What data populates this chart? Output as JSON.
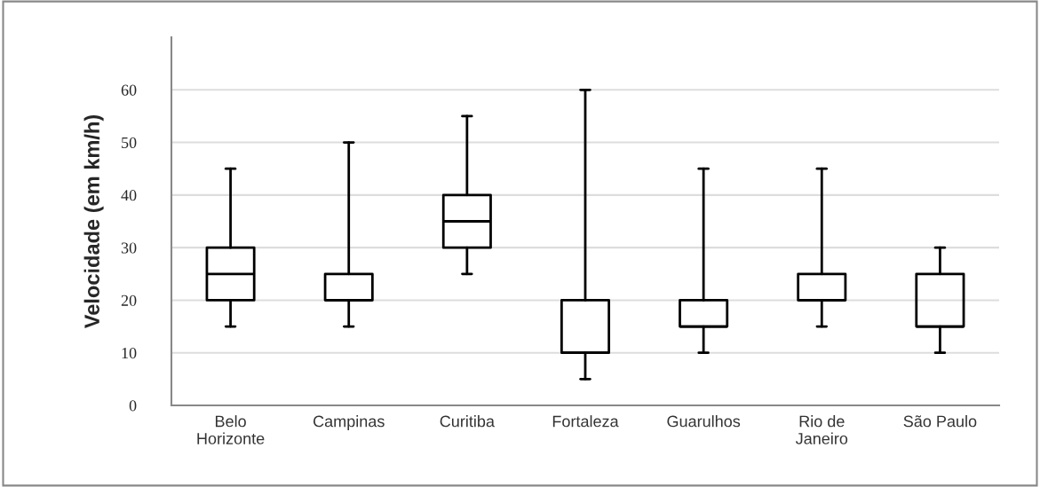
{
  "chart_data": {
    "type": "box",
    "ylabel": "Velocidade (em km/h)",
    "categories": [
      "Belo\nHorizonte",
      "Campinas",
      "Curitiba",
      "Fortaleza",
      "Guarulhos",
      "Rio de\nJaneiro",
      "São Paulo"
    ],
    "boxes": [
      {
        "low": 15,
        "q1": 20,
        "median": 25,
        "q3": 30,
        "high": 45
      },
      {
        "low": 15,
        "q1": 20,
        "median": 20,
        "q3": 25,
        "high": 50
      },
      {
        "low": 25,
        "q1": 30,
        "median": 35,
        "q3": 40,
        "high": 55
      },
      {
        "low": 5,
        "q1": 10,
        "median": 10,
        "q3": 20,
        "high": 60
      },
      {
        "low": 10,
        "q1": 15,
        "median": 15,
        "q3": 20,
        "high": 45
      },
      {
        "low": 15,
        "q1": 20,
        "median": 20,
        "q3": 25,
        "high": 45
      },
      {
        "low": 10,
        "q1": 15,
        "median": 15,
        "q3": 25,
        "high": 30
      }
    ],
    "ylim": [
      0,
      70
    ],
    "yticks": [
      0,
      10,
      20,
      30,
      40,
      50,
      60
    ],
    "grid": "y",
    "color": "#000000"
  }
}
